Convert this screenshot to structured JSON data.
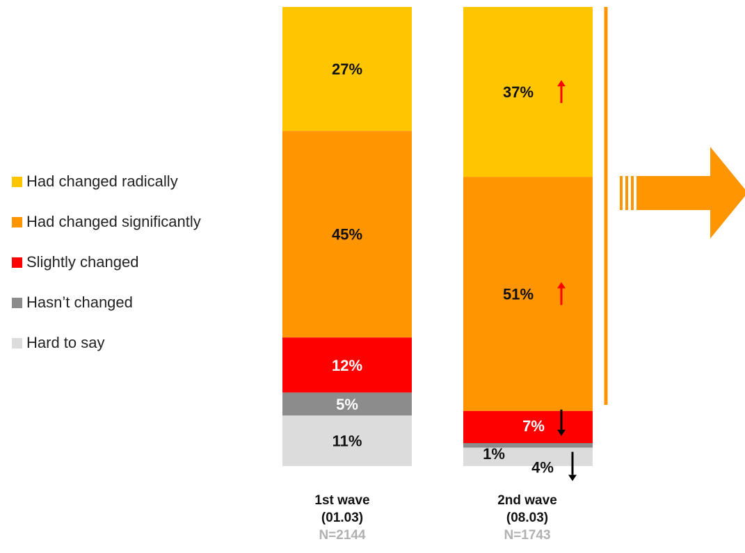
{
  "colors": {
    "had_changed_radically": "#FFC600",
    "had_changed_significantly": "#FF9500",
    "slightly_changed": "#FF0000",
    "hasnt_changed": "#8C8C8C",
    "hard_to_say": "#DCDCDC",
    "arrow_up": "#FF0000",
    "arrow_down": "#000000",
    "big_arrow": "#FF9500",
    "divider_line": "#FF9500"
  },
  "legend": [
    {
      "label": "Had changed radically",
      "color": "#FFC600"
    },
    {
      "label": "Had changed significantly",
      "color": "#FF9500"
    },
    {
      "label": "Slightly changed",
      "color": "#FF0000"
    },
    {
      "label": "Hasn’t changed",
      "color": "#8C8C8C"
    },
    {
      "label": "Hard to say",
      "color": "#DCDCDC"
    }
  ],
  "chart_data": {
    "type": "bar",
    "stacked": true,
    "categories": [
      "1st wave (01.03)",
      "2nd wave (08.03)"
    ],
    "series": [
      {
        "name": "Had changed radically",
        "values": [
          27,
          37
        ],
        "color": "#FFC600"
      },
      {
        "name": "Had changed significantly",
        "values": [
          45,
          51
        ],
        "color": "#FF9500"
      },
      {
        "name": "Slightly changed",
        "values": [
          12,
          7
        ],
        "color": "#FF0000"
      },
      {
        "name": "Hasn’t changed",
        "values": [
          5,
          1
        ],
        "color": "#8C8C8C"
      },
      {
        "name": "Hard to say",
        "values": [
          11,
          4
        ],
        "color": "#DCDCDC"
      }
    ],
    "data_labels": [
      [
        "27%",
        "45%",
        "12%",
        "5%",
        "11%"
      ],
      [
        "37%",
        "51%",
        "7%",
        "1%",
        "4%"
      ]
    ],
    "change_indicators": [
      [
        "none",
        "none",
        "none",
        "none",
        "none"
      ],
      [
        "up",
        "up",
        "down",
        "none",
        "down"
      ]
    ],
    "waves": [
      {
        "title": "1st wave",
        "date": "(01.03)",
        "n": "N=2144"
      },
      {
        "title": "2nd wave",
        "date": "(08.03)",
        "n": "N=1743"
      }
    ],
    "legend_position": "left",
    "grid": false,
    "ylim": [
      0,
      100
    ]
  }
}
